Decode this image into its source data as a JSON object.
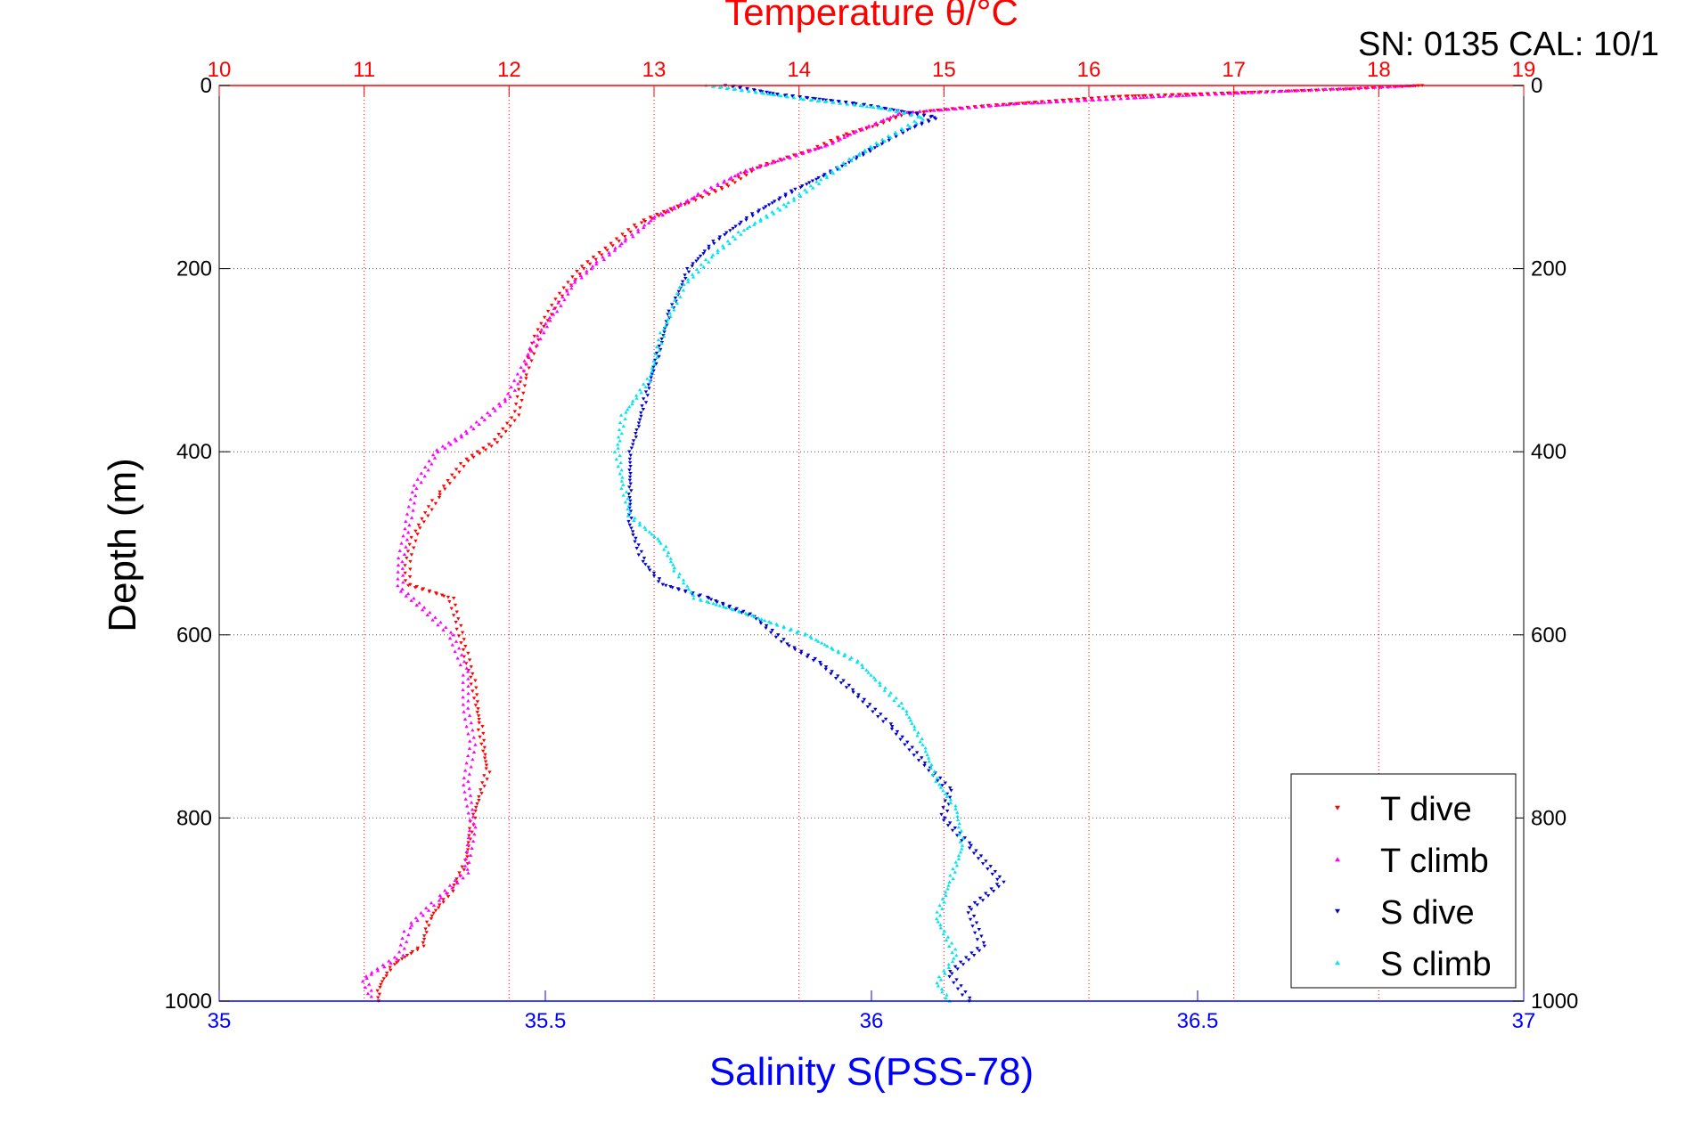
{
  "chart_data": {
    "type": "scatter",
    "title": "Temperature θ/°C",
    "annotation": "SN: 0135  CAL: 10/1",
    "xlabel": "Salinity S(PSS-78)",
    "ylabel": "Depth (m)",
    "ylim": [
      0,
      1000
    ],
    "y_reversed": true,
    "x_bottom": {
      "range": [
        35,
        37
      ],
      "ticks": [
        "35",
        "35.5",
        "36",
        "36.5",
        "37"
      ],
      "color": "#0000ff"
    },
    "x_top": {
      "range": [
        10,
        19
      ],
      "ticks": [
        "10",
        "11",
        "12",
        "13",
        "14",
        "15",
        "16",
        "17",
        "18",
        "19"
      ],
      "color": "#ff0000"
    },
    "y_ticks": [
      "0",
      "200",
      "400",
      "600",
      "800",
      "1000"
    ],
    "grid": {
      "vertical": "red dotted (temperature)",
      "horizontal": "gray dotted (depth)"
    },
    "legend_position": "bottom-right",
    "series": [
      {
        "name": "T dive",
        "axis": "top",
        "color": "#ff0000",
        "marker": "triangle-down",
        "points": [
          [
            18.3,
            0
          ],
          [
            17.8,
            4
          ],
          [
            17.0,
            8
          ],
          [
            16.2,
            12
          ],
          [
            15.3,
            22
          ],
          [
            14.9,
            28
          ],
          [
            14.7,
            33
          ],
          [
            14.5,
            45
          ],
          [
            14.3,
            55
          ],
          [
            14.1,
            70
          ],
          [
            13.7,
            90
          ],
          [
            13.5,
            110
          ],
          [
            13.2,
            130
          ],
          [
            12.9,
            150
          ],
          [
            12.7,
            175
          ],
          [
            12.5,
            200
          ],
          [
            12.35,
            230
          ],
          [
            12.2,
            270
          ],
          [
            12.1,
            320
          ],
          [
            12.05,
            360
          ],
          [
            11.9,
            390
          ],
          [
            11.7,
            410
          ],
          [
            11.5,
            450
          ],
          [
            11.35,
            490
          ],
          [
            11.3,
            520
          ],
          [
            11.3,
            545
          ],
          [
            11.6,
            560
          ],
          [
            11.65,
            590
          ],
          [
            11.7,
            620
          ],
          [
            11.75,
            650
          ],
          [
            11.8,
            700
          ],
          [
            11.85,
            750
          ],
          [
            11.75,
            800
          ],
          [
            11.7,
            850
          ],
          [
            11.6,
            880
          ],
          [
            11.45,
            910
          ],
          [
            11.4,
            940
          ],
          [
            11.2,
            960
          ],
          [
            11.1,
            985
          ],
          [
            11.1,
            1000
          ]
        ]
      },
      {
        "name": "T climb",
        "axis": "top",
        "color": "#ff00ff",
        "marker": "triangle-up",
        "points": [
          [
            18.25,
            0
          ],
          [
            17.5,
            5
          ],
          [
            16.5,
            12
          ],
          [
            15.5,
            20
          ],
          [
            14.7,
            30
          ],
          [
            14.4,
            50
          ],
          [
            14.2,
            65
          ],
          [
            13.9,
            80
          ],
          [
            13.6,
            95
          ],
          [
            13.3,
            120
          ],
          [
            13.0,
            145
          ],
          [
            12.8,
            170
          ],
          [
            12.6,
            195
          ],
          [
            12.45,
            215
          ],
          [
            12.3,
            250
          ],
          [
            12.15,
            290
          ],
          [
            12.0,
            340
          ],
          [
            11.7,
            380
          ],
          [
            11.5,
            400
          ],
          [
            11.35,
            440
          ],
          [
            11.3,
            480
          ],
          [
            11.25,
            520
          ],
          [
            11.25,
            550
          ],
          [
            11.4,
            570
          ],
          [
            11.6,
            600
          ],
          [
            11.7,
            640
          ],
          [
            11.7,
            680
          ],
          [
            11.75,
            720
          ],
          [
            11.7,
            760
          ],
          [
            11.75,
            810
          ],
          [
            11.7,
            860
          ],
          [
            11.5,
            890
          ],
          [
            11.3,
            920
          ],
          [
            11.25,
            950
          ],
          [
            11.0,
            975
          ],
          [
            11.05,
            995
          ]
        ]
      },
      {
        "name": "S dive",
        "axis": "bottom",
        "color": "#0000cd",
        "marker": "triangle-down",
        "points": [
          [
            35.78,
            0
          ],
          [
            35.86,
            10
          ],
          [
            35.98,
            20
          ],
          [
            36.1,
            35
          ],
          [
            36.05,
            50
          ],
          [
            36.0,
            70
          ],
          [
            35.95,
            90
          ],
          [
            35.88,
            115
          ],
          [
            35.82,
            140
          ],
          [
            35.76,
            170
          ],
          [
            35.72,
            200
          ],
          [
            35.69,
            250
          ],
          [
            35.67,
            300
          ],
          [
            35.65,
            350
          ],
          [
            35.64,
            380
          ],
          [
            35.63,
            400
          ],
          [
            35.63,
            420
          ],
          [
            35.63,
            450
          ],
          [
            35.63,
            480
          ],
          [
            35.65,
            520
          ],
          [
            35.68,
            545
          ],
          [
            35.75,
            560
          ],
          [
            35.82,
            580
          ],
          [
            35.87,
            610
          ],
          [
            35.92,
            630
          ],
          [
            35.97,
            660
          ],
          [
            36.03,
            700
          ],
          [
            36.08,
            740
          ],
          [
            36.12,
            770
          ],
          [
            36.11,
            800
          ],
          [
            36.15,
            830
          ],
          [
            36.2,
            870
          ],
          [
            36.15,
            900
          ],
          [
            36.17,
            940
          ],
          [
            36.12,
            970
          ],
          [
            36.15,
            1000
          ]
        ]
      },
      {
        "name": "S climb",
        "axis": "bottom",
        "color": "#00e5ee",
        "marker": "triangle-up",
        "points": [
          [
            35.75,
            0
          ],
          [
            35.9,
            15
          ],
          [
            36.02,
            25
          ],
          [
            36.08,
            35
          ],
          [
            36.03,
            55
          ],
          [
            35.97,
            80
          ],
          [
            35.92,
            105
          ],
          [
            35.87,
            130
          ],
          [
            35.8,
            160
          ],
          [
            35.75,
            190
          ],
          [
            35.71,
            220
          ],
          [
            35.68,
            270
          ],
          [
            35.66,
            320
          ],
          [
            35.62,
            360
          ],
          [
            35.61,
            400
          ],
          [
            35.62,
            440
          ],
          [
            35.63,
            470
          ],
          [
            35.68,
            500
          ],
          [
            35.7,
            530
          ],
          [
            35.73,
            560
          ],
          [
            35.8,
            575
          ],
          [
            35.9,
            600
          ],
          [
            35.98,
            630
          ],
          [
            36.05,
            680
          ],
          [
            36.08,
            720
          ],
          [
            36.1,
            760
          ],
          [
            36.13,
            790
          ],
          [
            36.14,
            830
          ],
          [
            36.12,
            870
          ],
          [
            36.1,
            910
          ],
          [
            36.13,
            950
          ],
          [
            36.1,
            980
          ],
          [
            36.12,
            1000
          ]
        ]
      }
    ]
  }
}
